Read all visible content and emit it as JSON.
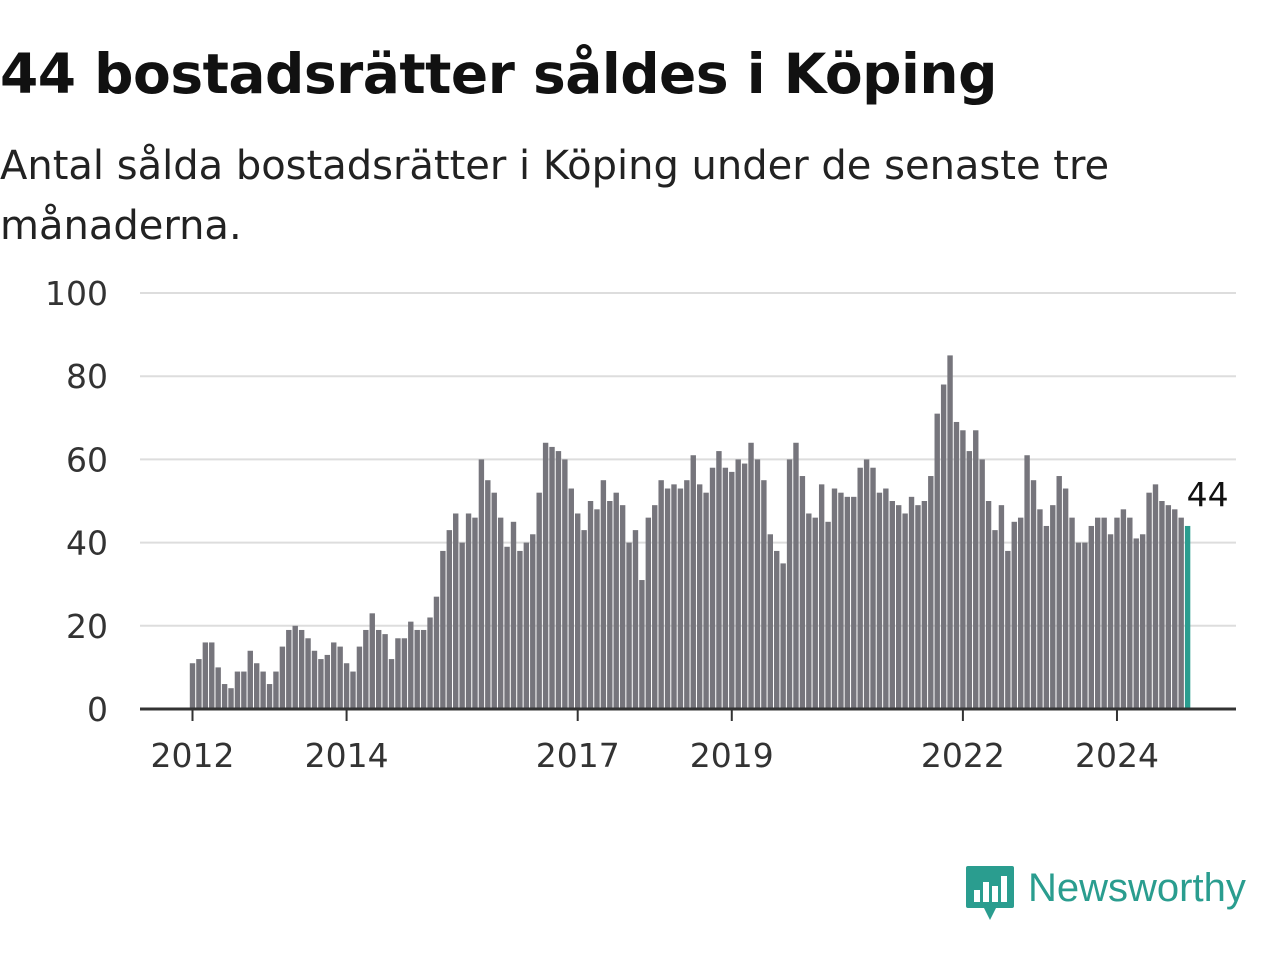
{
  "title": "44 bostadsrätter såldes i Köping",
  "subtitle": "Antal sålda bostadsrätter i Köping under de senaste tre månaderna.",
  "logo": {
    "text": "Newsworthy",
    "icon": "newsworthy-chart-bubble-icon",
    "color": "#2a9d8f"
  },
  "chart_data": {
    "type": "bar",
    "title": "",
    "xlabel": "",
    "ylabel": "",
    "ylim": [
      0,
      100
    ],
    "yticks": [
      0,
      20,
      40,
      60,
      80,
      100
    ],
    "xticks": [
      {
        "label": "2012",
        "index": 0
      },
      {
        "label": "2014",
        "index": 24
      },
      {
        "label": "2017",
        "index": 60
      },
      {
        "label": "2019",
        "index": 84
      },
      {
        "label": "2022",
        "index": 120
      },
      {
        "label": "2024",
        "index": 144
      }
    ],
    "grid": true,
    "bar_color": "#76757c",
    "highlight_color": "#2a9d8f",
    "highlight_label": "44",
    "start": "2012-01",
    "values": [
      11,
      12,
      16,
      16,
      10,
      6,
      5,
      9,
      9,
      14,
      11,
      9,
      6,
      9,
      15,
      19,
      20,
      19,
      17,
      14,
      12,
      13,
      16,
      15,
      11,
      9,
      15,
      19,
      23,
      19,
      18,
      12,
      17,
      17,
      21,
      19,
      19,
      22,
      27,
      38,
      43,
      47,
      40,
      47,
      46,
      60,
      55,
      52,
      46,
      39,
      45,
      38,
      40,
      42,
      52,
      64,
      63,
      62,
      60,
      53,
      47,
      43,
      50,
      48,
      55,
      50,
      52,
      49,
      40,
      43,
      31,
      46,
      49,
      55,
      53,
      54,
      53,
      55,
      61,
      54,
      52,
      58,
      62,
      58,
      57,
      60,
      59,
      64,
      60,
      55,
      42,
      38,
      35,
      60,
      64,
      56,
      47,
      46,
      54,
      45,
      53,
      52,
      51,
      51,
      58,
      60,
      58,
      52,
      53,
      50,
      49,
      47,
      51,
      49,
      50,
      56,
      71,
      78,
      85,
      69,
      67,
      62,
      67,
      60,
      50,
      43,
      49,
      38,
      45,
      46,
      61,
      55,
      48,
      44,
      49,
      56,
      53,
      46,
      40,
      40,
      44,
      46,
      46,
      42,
      46,
      48,
      46,
      41,
      42,
      52,
      54,
      50,
      49,
      48,
      46,
      44
    ]
  }
}
